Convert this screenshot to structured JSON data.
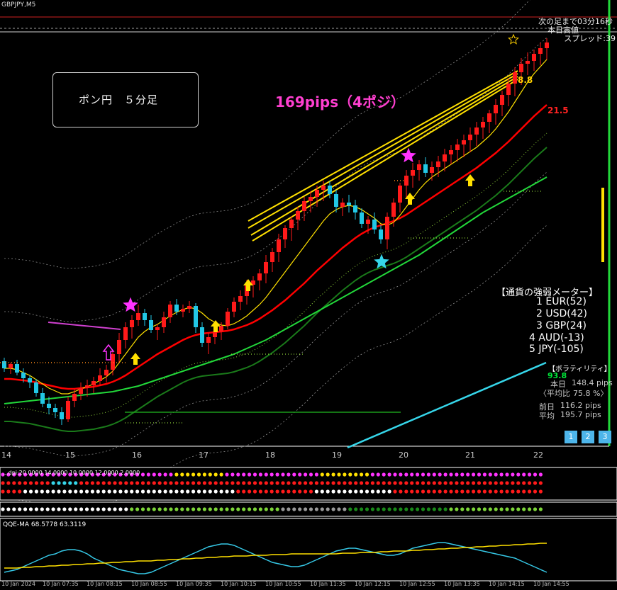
{
  "header": {
    "symbol": "GBPJPY,M5",
    "countdown": "次の足まで03分16秒",
    "today_high": "本日高値",
    "spread": "スプレッド:39"
  },
  "annotation": {
    "box_text": "ポン円　５分足",
    "headline": "169pips（4ポジ）",
    "ma_label": "21.5",
    "price_label": "8.8"
  },
  "strength": {
    "title": "【通貨の強弱メーター】",
    "items": [
      "1 EUR(52)",
      "2 USD(42)",
      "3 GBP(24)",
      "4 AUD(-13)",
      "5 JPY(-105)"
    ]
  },
  "volatility": {
    "title": "【ボラティリティ】",
    "big_value": "93.8",
    "today": "本日",
    "today_val": "148.4 pips",
    "ratio_label": "〈平均比",
    "ratio_val": "75.8 %〉",
    "prev": "前日",
    "prev_val": "116.2 pips",
    "avg": "平均",
    "avg_val": "195.7 pips"
  },
  "pages": [
    "1",
    "2",
    "3"
  ],
  "x_axis": [
    "14",
    "15",
    "16",
    "17",
    "18",
    "19",
    "20",
    "21",
    "22"
  ],
  "time_axis": [
    "10 Jan 2024",
    "10 Jan 07:35",
    "10 Jan 08:15",
    "10 Jan 08:55",
    "10 Jan 09:35",
    "10 Jan 10:15",
    "10 Jan 10:55",
    "10 Jan 11:35",
    "10 Jan 12:15",
    "10 Jan 12:55",
    "10 Jan 13:35",
    "10 Jan 14:15",
    "10 Jan 14:55"
  ],
  "subpanel1_label": "...dpi:20.0000 14.0000 10.0000 12.0000 2.0000",
  "qqe_label": "QQE-MA 68.5778 63.3119",
  "colors": {
    "bull": "#ff1a1a",
    "bear": "#22c8e6",
    "ma_fast": "#ffe000",
    "ma_mid": "#ff0000",
    "ma_slow": "#22d83a",
    "magenta": "#ff33ff"
  },
  "chart_data": {
    "type": "candlestick",
    "x_axis_ticks": [
      "14",
      "15",
      "16",
      "17",
      "18",
      "19",
      "20",
      "21",
      "22"
    ],
    "candles": [
      [
        510,
        525,
        505,
        520
      ],
      [
        520,
        528,
        512,
        514
      ],
      [
        514,
        530,
        508,
        526
      ],
      [
        526,
        540,
        520,
        534
      ],
      [
        534,
        548,
        530,
        540
      ],
      [
        540,
        560,
        535,
        555
      ],
      [
        555,
        575,
        548,
        570
      ],
      [
        570,
        585,
        560,
        576
      ],
      [
        576,
        590,
        570,
        582
      ],
      [
        582,
        600,
        575,
        592
      ],
      [
        592,
        596,
        560,
        566
      ],
      [
        566,
        575,
        550,
        556
      ],
      [
        556,
        565,
        540,
        548
      ],
      [
        548,
        560,
        536,
        544
      ],
      [
        544,
        555,
        532,
        538
      ],
      [
        538,
        545,
        520,
        530
      ],
      [
        530,
        540,
        515,
        522
      ],
      [
        522,
        530,
        495,
        500
      ],
      [
        500,
        512,
        470,
        480
      ],
      [
        480,
        492,
        455,
        462
      ],
      [
        462,
        478,
        445,
        452
      ],
      [
        452,
        460,
        430,
        442
      ],
      [
        442,
        460,
        436,
        452
      ],
      [
        452,
        470,
        445,
        466
      ],
      [
        466,
        480,
        458,
        462
      ],
      [
        462,
        470,
        440,
        448
      ],
      [
        448,
        456,
        425,
        430
      ],
      [
        430,
        445,
        422,
        440
      ],
      [
        440,
        448,
        430,
        436
      ],
      [
        436,
        442,
        425,
        432
      ],
      [
        432,
        470,
        428,
        462
      ],
      [
        462,
        490,
        455,
        484
      ],
      [
        484,
        500,
        470,
        476
      ],
      [
        476,
        486,
        460,
        468
      ],
      [
        468,
        480,
        455,
        460
      ],
      [
        460,
        465,
        435,
        440
      ],
      [
        440,
        448,
        420,
        426
      ],
      [
        426,
        438,
        410,
        418
      ],
      [
        418,
        430,
        395,
        402
      ],
      [
        402,
        420,
        390,
        396
      ],
      [
        396,
        410,
        380,
        386
      ],
      [
        386,
        400,
        360,
        370
      ],
      [
        370,
        384,
        350,
        356
      ],
      [
        356,
        370,
        330,
        338
      ],
      [
        338,
        350,
        318,
        322
      ],
      [
        322,
        340,
        305,
        310
      ],
      [
        310,
        325,
        292,
        298
      ],
      [
        298,
        312,
        278,
        284
      ],
      [
        284,
        300,
        270,
        278
      ],
      [
        278,
        292,
        262,
        268
      ],
      [
        268,
        284,
        255,
        262
      ],
      [
        262,
        280,
        256,
        274
      ],
      [
        274,
        300,
        268,
        292
      ],
      [
        292,
        305,
        280,
        286
      ],
      [
        286,
        300,
        275,
        290
      ],
      [
        290,
        310,
        282,
        300
      ],
      [
        300,
        322,
        294,
        316
      ],
      [
        316,
        330,
        305,
        310
      ],
      [
        310,
        330,
        300,
        324
      ],
      [
        324,
        344,
        318,
        338
      ],
      [
        338,
        352,
        300,
        306
      ],
      [
        306,
        320,
        280,
        286
      ],
      [
        286,
        300,
        258,
        262
      ],
      [
        262,
        280,
        240,
        248
      ],
      [
        248,
        265,
        230,
        240
      ],
      [
        240,
        255,
        226,
        232
      ],
      [
        232,
        250,
        222,
        244
      ],
      [
        244,
        255,
        228,
        236
      ],
      [
        236,
        250,
        220,
        228
      ],
      [
        228,
        242,
        210,
        218
      ],
      [
        218,
        232,
        205,
        212
      ],
      [
        212,
        228,
        196,
        204
      ],
      [
        204,
        222,
        190,
        198
      ],
      [
        198,
        215,
        180,
        190
      ],
      [
        190,
        206,
        172,
        180
      ],
      [
        180,
        196,
        165,
        172
      ],
      [
        172,
        188,
        155,
        160
      ],
      [
        160,
        176,
        140,
        148
      ],
      [
        148,
        164,
        128,
        134
      ],
      [
        134,
        150,
        110,
        118
      ],
      [
        118,
        136,
        95,
        102
      ],
      [
        102,
        120,
        82,
        90
      ],
      [
        90,
        106,
        74,
        86
      ],
      [
        86,
        100,
        70,
        76
      ],
      [
        76,
        92,
        60,
        68
      ],
      [
        68,
        84,
        54,
        60
      ]
    ],
    "series": [
      {
        "values": [
          520,
          520,
          522,
          526,
          530,
          536,
          542,
          548,
          552,
          556,
          556,
          553,
          549,
          546,
          542,
          537,
          532,
          524,
          512,
          500,
          488,
          476,
          468,
          462,
          458,
          452,
          446,
          441,
          437,
          434,
          436,
          442,
          450,
          455,
          459,
          460,
          457,
          452,
          446,
          438,
          430,
          420,
          408,
          396,
          384,
          372,
          360,
          348,
          336,
          324,
          312,
          302,
          296,
          292,
          290,
          292,
          296,
          302,
          308,
          316,
          318,
          314,
          304,
          292,
          280,
          268,
          258,
          250,
          244,
          238,
          232,
          226,
          220,
          214,
          208,
          200,
          192,
          182,
          170,
          158,
          144,
          130,
          116,
          104,
          94,
          84
        ]
      },
      {
        "values": [
          535,
          535,
          536,
          537,
          538,
          540,
          542,
          544,
          546,
          548,
          549,
          549,
          548,
          547,
          546,
          544,
          542,
          539,
          535,
          530,
          524,
          518,
          512,
          506,
          500,
          495,
          490,
          485,
          480,
          476,
          473,
          471,
          470,
          469,
          468,
          467,
          465,
          462,
          459,
          455,
          450,
          444,
          438,
          431,
          424,
          416,
          408,
          400,
          391,
          382,
          374,
          366,
          358,
          350,
          343,
          336,
          330,
          325,
          321,
          318,
          315,
          312,
          308,
          303,
          297,
          291,
          285,
          279,
          273,
          267,
          261,
          255,
          249,
          243,
          237,
          230,
          223,
          216,
          208,
          200,
          191,
          182,
          173,
          164,
          156,
          148
        ]
      },
      {
        "values": [
          570,
          569,
          568,
          567,
          566,
          565,
          564,
          563,
          562,
          561,
          560,
          559,
          558,
          557,
          556,
          555,
          554,
          553,
          551,
          549,
          547,
          545,
          542,
          539,
          536,
          533,
          530,
          527,
          524,
          521,
          518,
          515,
          512,
          509,
          506,
          503,
          500,
          496,
          492,
          488,
          484,
          480,
          475,
          470,
          465,
          460,
          455,
          450,
          445,
          440,
          435,
          430,
          425,
          420,
          415,
          410,
          405,
          400,
          395,
          390,
          385,
          380,
          375,
          370,
          365,
          360,
          354,
          348,
          342,
          336,
          330,
          324,
          318,
          312,
          306,
          300,
          295,
          290,
          285,
          280,
          275,
          270,
          265,
          260,
          255,
          250
        ]
      },
      {
        "values": [
          48,
          46,
          44,
          40,
          36,
          32,
          28,
          24,
          22,
          18,
          16,
          16,
          18,
          22,
          28,
          32,
          36,
          40,
          44,
          46,
          48,
          50,
          50,
          48,
          44,
          40,
          36,
          32,
          28,
          24,
          20,
          16,
          12,
          10,
          8,
          8,
          10,
          14,
          18,
          22,
          26,
          30,
          34,
          36,
          38,
          40,
          40,
          38,
          34,
          30,
          26,
          22,
          18,
          16,
          14,
          14,
          16,
          18,
          20,
          22,
          24,
          24,
          22,
          18,
          14,
          12,
          10,
          8,
          6,
          6,
          8,
          10,
          12,
          14,
          16,
          18,
          20,
          22,
          24,
          26,
          28,
          32,
          36,
          40,
          44,
          48
        ]
      },
      {
        "values": [
          18,
          18,
          18,
          19,
          19,
          20,
          20,
          21,
          21,
          22,
          22,
          23,
          23,
          24,
          24,
          25,
          25,
          26,
          26,
          27,
          27,
          28,
          28,
          28,
          29,
          29,
          30,
          30,
          31,
          31,
          32,
          32,
          33,
          33,
          34,
          34,
          35,
          35,
          35,
          36,
          36,
          36,
          37,
          37,
          37,
          38,
          38,
          38,
          38,
          38,
          38,
          38,
          38,
          39,
          39,
          39,
          40,
          40,
          40,
          41,
          41,
          42,
          42,
          42,
          43,
          43,
          44,
          44,
          45,
          45,
          46,
          46,
          47,
          47,
          48,
          48,
          49,
          49,
          50,
          50,
          51,
          51,
          52,
          52,
          53,
          53
        ]
      }
    ]
  }
}
